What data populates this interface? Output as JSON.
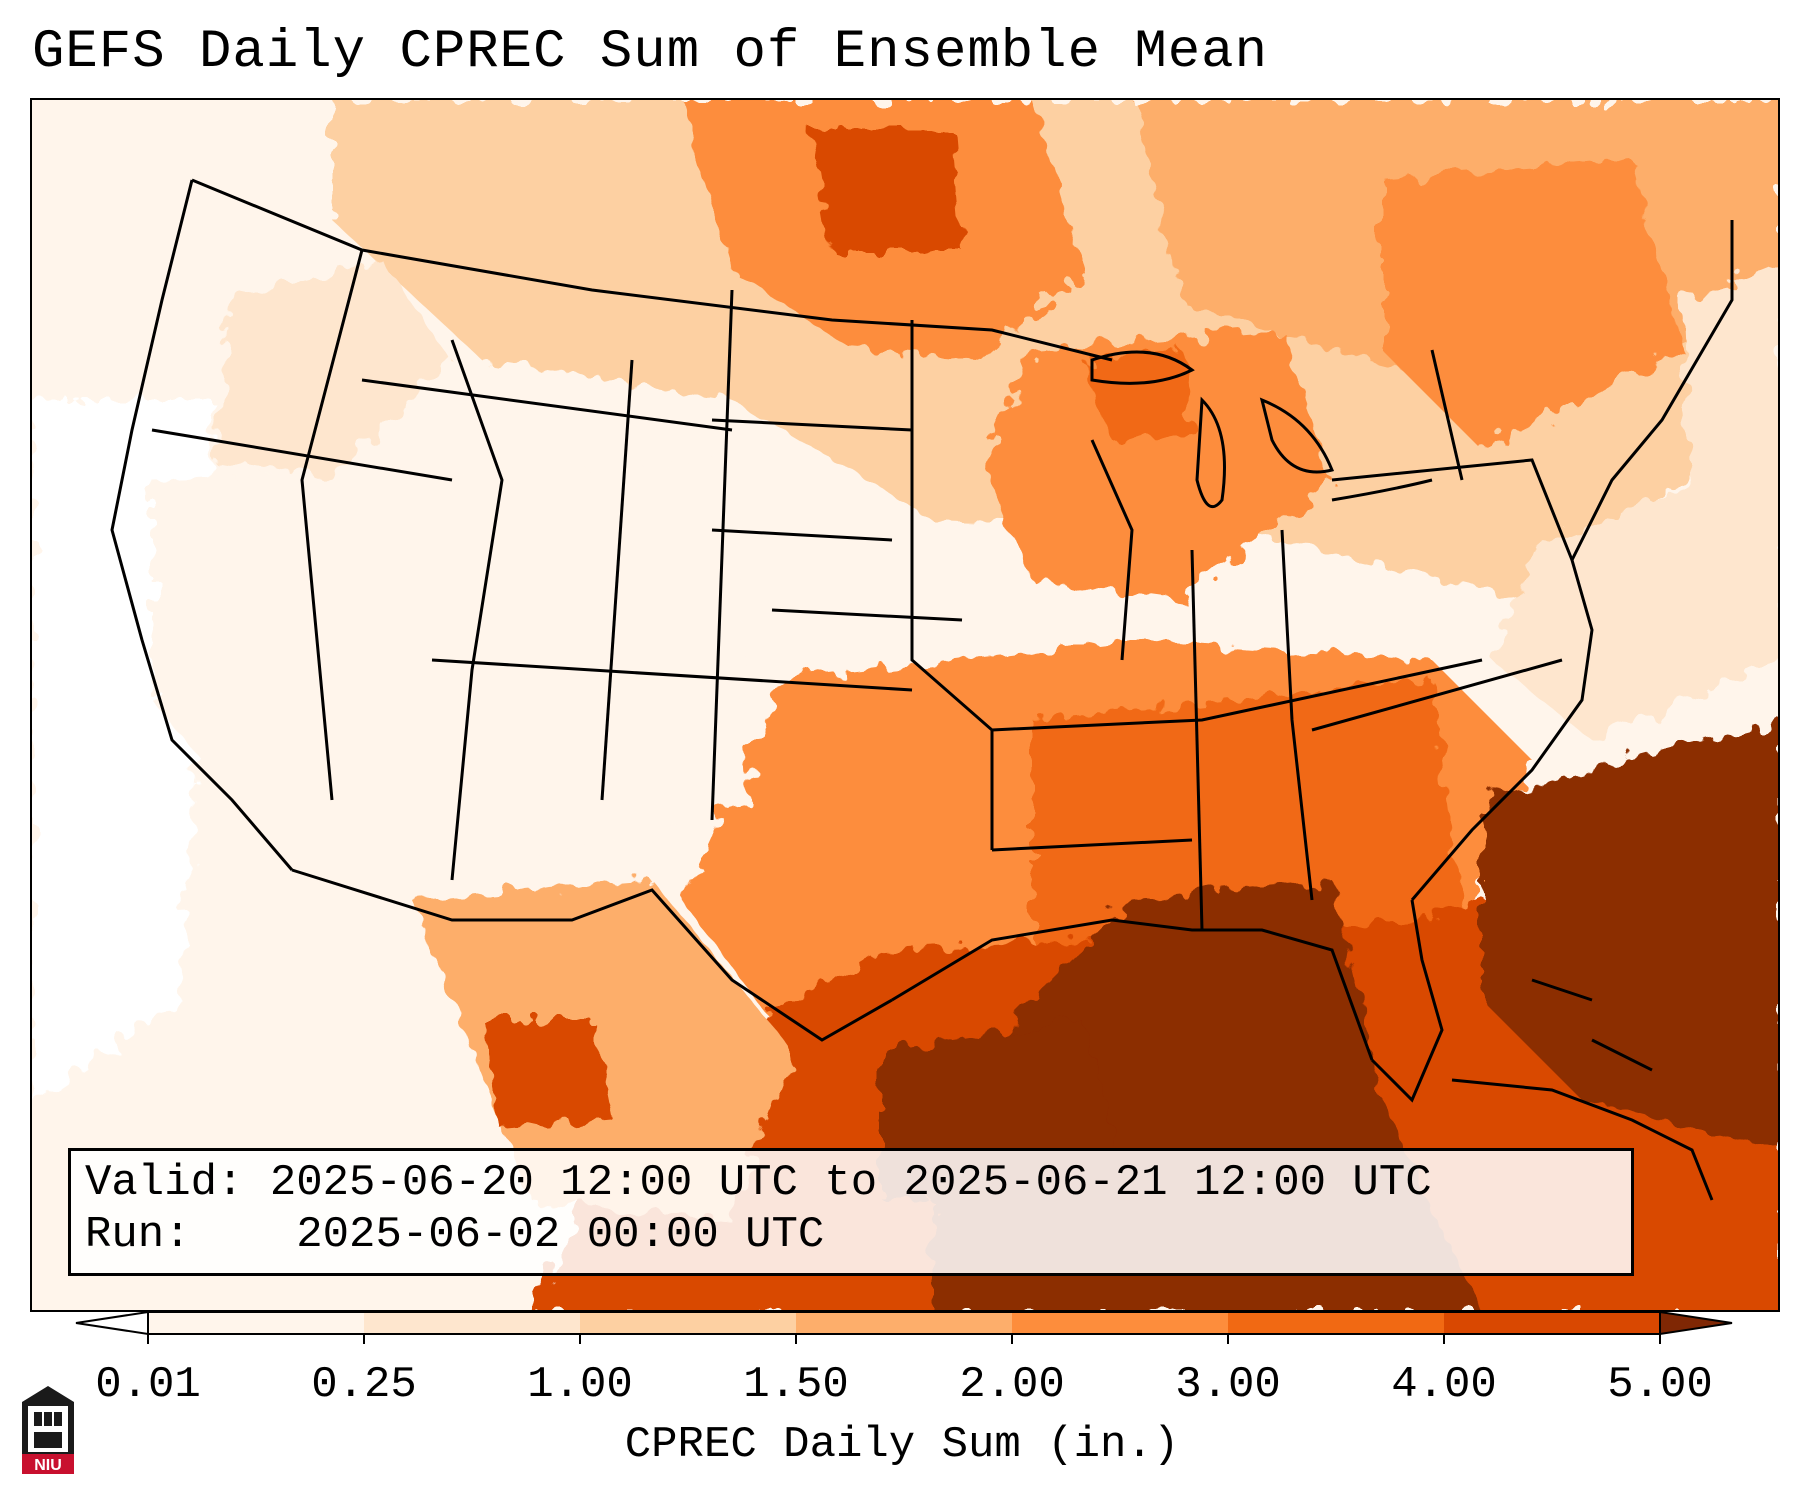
{
  "title": "GEFS Daily CPREC Sum of Ensemble Mean",
  "info": {
    "valid_label": "Valid:",
    "valid_value": "2025-06-20 12:00 UTC to 2025-06-21 12:00 UTC",
    "run_label": "Run:",
    "run_value": "2025-06-02 00:00 UTC"
  },
  "colorbar": {
    "label": "CPREC Daily Sum (in.)",
    "ticks": [
      "0.01",
      "0.25",
      "1.00",
      "1.50",
      "2.00",
      "3.00",
      "4.00",
      "5.00"
    ],
    "colors": [
      "#fff5eb",
      "#fee6ce",
      "#fdd0a2",
      "#fdae6b",
      "#fd8d3c",
      "#f16913",
      "#d94801",
      "#8c2d04"
    ],
    "under_color": "#ffffff",
    "over_color": "#7f2704"
  },
  "map": {
    "domain": "Contiguous United States",
    "model": "GEFS",
    "variable": "CPREC",
    "units": "in."
  },
  "logo": {
    "text": "NIU"
  }
}
